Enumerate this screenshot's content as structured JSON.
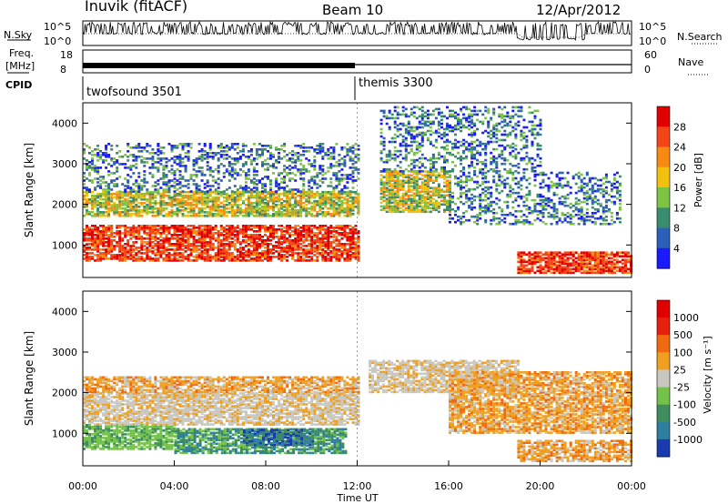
{
  "header": {
    "station": "Inuvik (fitACF)",
    "beam": "Beam 10",
    "date": "12/Apr/2012"
  },
  "top_panels": {
    "nsky_label": "N.Sky",
    "nsky_ticks": [
      "10^5",
      "10^0"
    ],
    "nsearch_label": "N.Search",
    "nsearch_ticks": [
      "10^5",
      "10^0"
    ],
    "freq_label": "Freq.",
    "freq_unit": "[MHz]",
    "freq_ticks": [
      "18",
      "8"
    ],
    "nave_label": "Nave",
    "nave_ticks": [
      "60",
      "0"
    ],
    "cpid_label": "CPID",
    "cpid_segments": [
      {
        "name": "twofsound 3501",
        "start_hour": 0
      },
      {
        "name": "themis 3300",
        "start_hour": 12
      }
    ]
  },
  "chart_data": [
    {
      "type": "heatmap",
      "parameter": "power",
      "ylabel": "Slant Range [km]",
      "xlabel": "",
      "xlim_hours": [
        0,
        24
      ],
      "ylim": [
        200,
        4500
      ],
      "yticks": [
        1000,
        2000,
        3000,
        4000
      ],
      "colorbar": {
        "label": "Power [dB]",
        "ticks": [
          "28",
          "24",
          "20",
          "16",
          "12",
          "8",
          "4"
        ],
        "colors": [
          "#1a1aff",
          "#2c5fb8",
          "#3a8c6e",
          "#7cc441",
          "#f2c10f",
          "#f88a14",
          "#f44516",
          "#e00000"
        ]
      },
      "regions": [
        {
          "t0": 0.0,
          "t1": 12.0,
          "r0": 600,
          "r1": 1500,
          "value": "high"
        },
        {
          "t0": 0.0,
          "t1": 12.0,
          "r0": 1700,
          "r1": 2300,
          "value": "mid"
        },
        {
          "t0": 0.0,
          "t1": 12.0,
          "r0": 2300,
          "r1": 3500,
          "value": "low"
        },
        {
          "t0": 13.0,
          "t1": 16.0,
          "r0": 1800,
          "r1": 2800,
          "value": "mid"
        },
        {
          "t0": 13.0,
          "t1": 20.0,
          "r0": 2800,
          "r1": 4400,
          "value": "sparse"
        },
        {
          "t0": 16.0,
          "t1": 23.5,
          "r0": 1500,
          "r1": 2800,
          "value": "low"
        },
        {
          "t0": 19.0,
          "t1": 24.0,
          "r0": 300,
          "r1": 800,
          "value": "high"
        }
      ]
    },
    {
      "type": "heatmap",
      "parameter": "velocity",
      "ylabel": "Slant Range [km]",
      "xlabel": "Time UT",
      "xlim_hours": [
        0,
        24
      ],
      "ylim": [
        200,
        4500
      ],
      "yticks": [
        1000,
        2000,
        3000,
        4000
      ],
      "xticks": [
        "00:00",
        "04:00",
        "08:00",
        "12:00",
        "16:00",
        "20:00",
        "00:00"
      ],
      "colorbar": {
        "label": "Velocity [m s⁻¹]",
        "ticks": [
          "1000",
          "500",
          "100",
          "25",
          "-25",
          "-100",
          "-500",
          "-1000"
        ],
        "colors": [
          "#1a3ab0",
          "#2e7ea0",
          "#3f8d5e",
          "#74c24a",
          "#c8c8c0",
          "#f0a020",
          "#f26a10",
          "#e82010",
          "#e00000"
        ]
      },
      "regions": [
        {
          "t0": 0.0,
          "t1": 4.0,
          "r0": 600,
          "r1": 1200,
          "value": "green"
        },
        {
          "t0": 4.0,
          "t1": 11.5,
          "r0": 500,
          "r1": 1100,
          "value": "dark-green"
        },
        {
          "t0": 7.0,
          "t1": 10.0,
          "r0": 700,
          "r1": 1100,
          "value": "blue"
        },
        {
          "t0": 0.0,
          "t1": 12.0,
          "r0": 1200,
          "r1": 2000,
          "value": "grey"
        },
        {
          "t0": 0.0,
          "t1": 12.0,
          "r0": 2000,
          "r1": 2400,
          "value": "orange"
        },
        {
          "t0": 12.5,
          "t1": 19.0,
          "r0": 2000,
          "r1": 2800,
          "value": "grey"
        },
        {
          "t0": 16.0,
          "t1": 24.0,
          "r0": 1000,
          "r1": 2500,
          "value": "orange"
        },
        {
          "t0": 19.0,
          "t1": 24.0,
          "r0": 300,
          "r1": 800,
          "value": "orange"
        }
      ]
    }
  ]
}
